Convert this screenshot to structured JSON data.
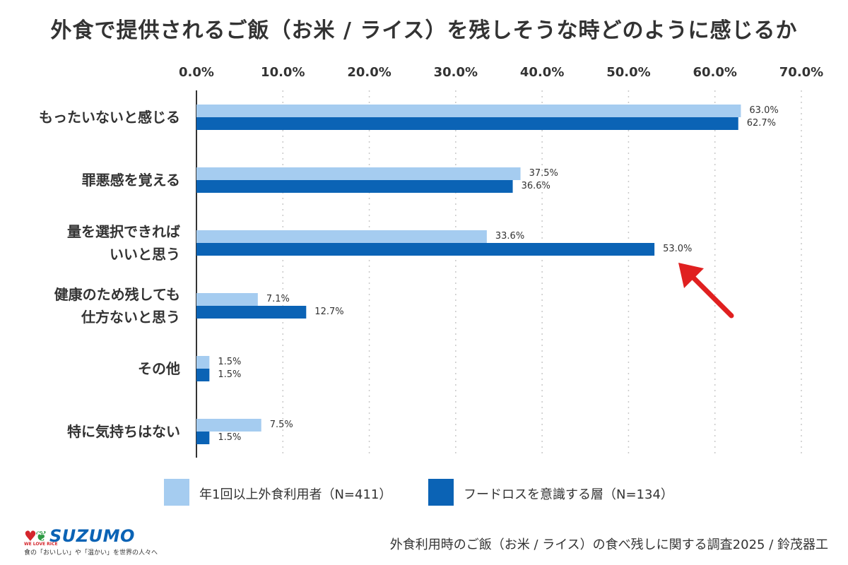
{
  "title": "外食で提供されるご飯（お米 / ライス）を残しそうな時どのように感じるか",
  "colors": {
    "series1": "#a5ccf0",
    "series2": "#0b63b5",
    "arrow": "#e02020"
  },
  "chart_data": {
    "type": "bar",
    "orientation": "horizontal",
    "xlim": [
      0,
      70
    ],
    "ticks": [
      "0.0%",
      "10.0%",
      "20.0%",
      "30.0%",
      "40.0%",
      "50.0%",
      "60.0%",
      "70.0%"
    ],
    "tick_values": [
      0,
      10,
      20,
      30,
      40,
      50,
      60,
      70
    ],
    "categories": [
      "もったいないと感じる",
      "罪悪感を覚える",
      "量を選択できれば\nいいと思う",
      "健康のため残しても\n仕方ないと思う",
      "その他",
      "特に気持ちはない"
    ],
    "series": [
      {
        "name": "年1回以上外食利用者（N=411）",
        "values": [
          63.0,
          37.5,
          33.6,
          7.1,
          1.5,
          7.5
        ],
        "labels": [
          "63.0%",
          "37.5%",
          "33.6%",
          "7.1%",
          "1.5%",
          "7.5%"
        ]
      },
      {
        "name": "フードロスを意識する層（N=134）",
        "values": [
          62.7,
          36.6,
          53.0,
          12.7,
          1.5,
          1.5
        ],
        "labels": [
          "62.7%",
          "36.6%",
          "53.0%",
          "12.7%",
          "1.5%",
          "1.5%"
        ]
      }
    ],
    "grid": true,
    "legend": "bottom",
    "annotation": "arrow pointing to 53.0% bar"
  },
  "logo": {
    "brand": "SUZUMO",
    "small_text": "WE LOVE RICE",
    "tagline": "食の「おいしい」や「温かい」を世界の人々へ"
  },
  "source": "外食利用時のご飯（お米 / ライス）の食べ残しに関する調査2025 / 鈴茂器工"
}
